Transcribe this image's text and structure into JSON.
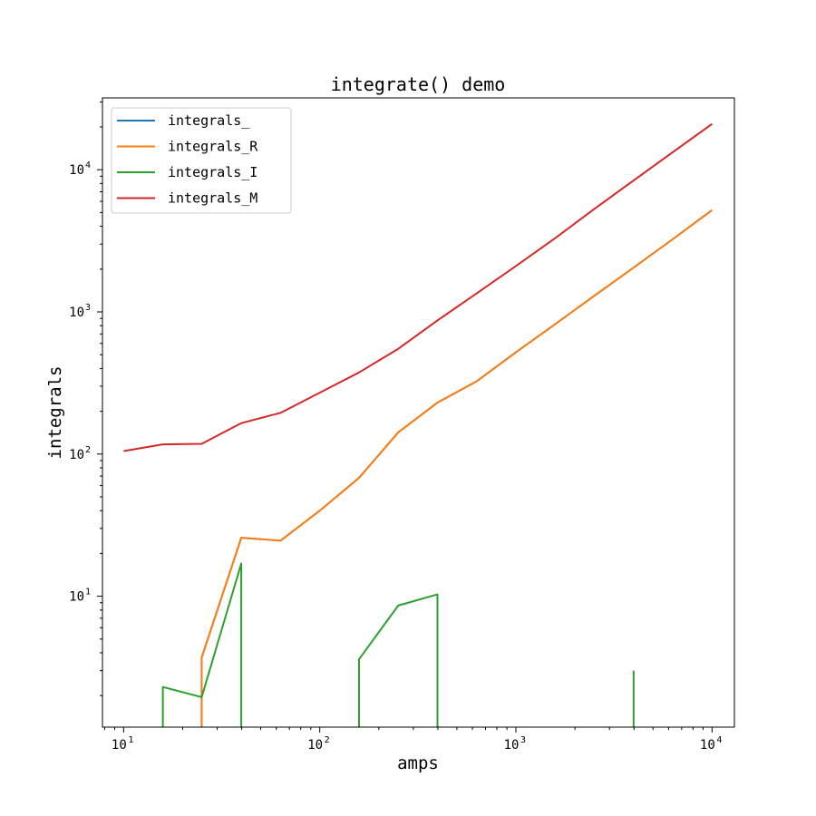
{
  "chart_data": {
    "type": "line",
    "title": "integrate() demo",
    "xlabel": "amps",
    "ylabel": "integrals",
    "xscale": "log",
    "yscale": "log",
    "xlim": [
      7.8,
      13000
    ],
    "ylim": [
      1.2,
      32000
    ],
    "grid": false,
    "legend_position": "top-left",
    "x_ticks": [
      {
        "base": "10",
        "exp": "1",
        "value": 10
      },
      {
        "base": "10",
        "exp": "2",
        "value": 100
      },
      {
        "base": "10",
        "exp": "3",
        "value": 1000
      },
      {
        "base": "10",
        "exp": "4",
        "value": 10000
      }
    ],
    "y_ticks": [
      {
        "base": "10",
        "exp": "1",
        "value": 10
      },
      {
        "base": "10",
        "exp": "2",
        "value": 100
      },
      {
        "base": "10",
        "exp": "3",
        "value": 1000
      },
      {
        "base": "10",
        "exp": "4",
        "value": 10000
      }
    ],
    "series": [
      {
        "name": "integrals_",
        "color": "#1f77b4",
        "points": [
          [
            25,
            1.2
          ],
          [
            25,
            3.7
          ],
          [
            39.8,
            25.8
          ],
          [
            63.1,
            24.6
          ],
          [
            100,
            40
          ],
          [
            158.5,
            68
          ],
          [
            251.2,
            142
          ],
          [
            398.1,
            230
          ],
          [
            631,
            325
          ],
          [
            1000,
            520
          ],
          [
            1585,
            820
          ],
          [
            2512,
            1300
          ],
          [
            3981,
            2050
          ],
          [
            6310,
            3250
          ],
          [
            10000,
            5200
          ]
        ]
      },
      {
        "name": "integrals_R",
        "color": "#ff7f0e",
        "points": [
          [
            25,
            1.2
          ],
          [
            25,
            3.7
          ],
          [
            39.8,
            25.8
          ],
          [
            63.1,
            24.6
          ],
          [
            100,
            40
          ],
          [
            158.5,
            68
          ],
          [
            251.2,
            142
          ],
          [
            398.1,
            230
          ],
          [
            631,
            325
          ],
          [
            1000,
            520
          ],
          [
            1585,
            820
          ],
          [
            2512,
            1300
          ],
          [
            3981,
            2050
          ],
          [
            6310,
            3250
          ],
          [
            10000,
            5200
          ]
        ]
      },
      {
        "name": "integrals_I",
        "color": "#2ca02c",
        "points": [
          [
            15.85,
            1.2
          ],
          [
            15.85,
            2.3
          ],
          [
            25,
            1.95
          ],
          [
            39.8,
            17
          ],
          [
            39.8,
            1.2
          ],
          [
            null,
            null
          ],
          [
            158.5,
            1.2
          ],
          [
            158.5,
            3.6
          ],
          [
            251.2,
            8.6
          ],
          [
            398.1,
            10.3
          ],
          [
            398.1,
            1.2
          ],
          [
            null,
            null
          ],
          [
            3981,
            1.2
          ],
          [
            3981,
            3.0
          ]
        ]
      },
      {
        "name": "integrals_M",
        "color": "#d62728",
        "points": [
          [
            10,
            105
          ],
          [
            15.85,
            117
          ],
          [
            25,
            118
          ],
          [
            39.8,
            165
          ],
          [
            63.1,
            195
          ],
          [
            100,
            270
          ],
          [
            158.5,
            375
          ],
          [
            251.2,
            550
          ],
          [
            398.1,
            870
          ],
          [
            631,
            1350
          ],
          [
            1000,
            2100
          ],
          [
            1585,
            3300
          ],
          [
            2512,
            5300
          ],
          [
            3981,
            8400
          ],
          [
            6310,
            13300
          ],
          [
            10000,
            21000
          ]
        ]
      }
    ]
  }
}
